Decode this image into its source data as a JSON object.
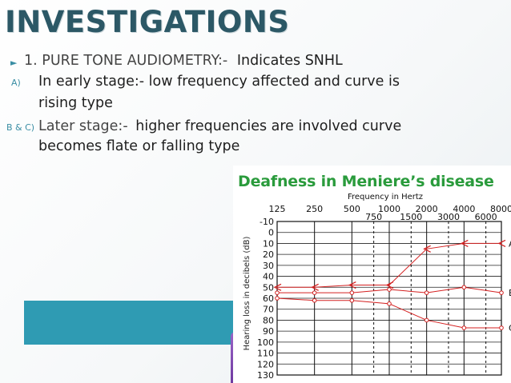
{
  "slide": {
    "title": "INVESTIGATIONS",
    "point1_prefix": "1. PURE TONE AUDIOMETRY:-",
    "point1_text": "Indicates SNHL",
    "item_a_marker": "A)",
    "item_a_line1": "In early stage:- low frequency affected and curve is",
    "item_a_line2": "rising type",
    "item_bc_marker": "B & C)",
    "item_bc_label": "Later stage:-",
    "item_bc_line1_rest": "higher frequencies are involved curve",
    "item_bc_line2": "becomes flate or  falling type"
  },
  "colors": {
    "title": "#2c5866",
    "accent": "#2f9bb3",
    "curve": "#d42020",
    "figure_title": "#2a9b3c"
  },
  "chart_data": {
    "type": "line",
    "title": "Deafness in Meniere’s disease",
    "xlabel": "Frequency in  Hertz",
    "ylabel": "Hearing loss in decibels (dB)",
    "x_ticks_top": [
      "125",
      "250",
      "500",
      "1000",
      "2000",
      "4000",
      "8000"
    ],
    "x_ticks_bottom": [
      "750",
      "1500",
      "3000",
      "6000"
    ],
    "y_ticks": [
      "-10",
      "0",
      "10",
      "20",
      "30",
      "40",
      "50",
      "60",
      "70",
      "80",
      "90",
      "100",
      "110",
      "120",
      "130"
    ],
    "ylim": [
      -10,
      130
    ],
    "series": [
      {
        "name": "A",
        "x": [
          125,
          250,
          500,
          1000,
          2000,
          4000,
          8000
        ],
        "values": [
          50,
          50,
          48,
          48,
          15,
          10,
          10
        ]
      },
      {
        "name": "B",
        "x": [
          125,
          250,
          500,
          1000,
          2000,
          4000,
          8000
        ],
        "values": [
          55,
          55,
          55,
          52,
          55,
          50,
          55
        ]
      },
      {
        "name": "C",
        "x": [
          125,
          250,
          500,
          1000,
          2000,
          4000,
          8000
        ],
        "values": [
          60,
          62,
          62,
          65,
          80,
          87,
          87
        ]
      }
    ]
  }
}
